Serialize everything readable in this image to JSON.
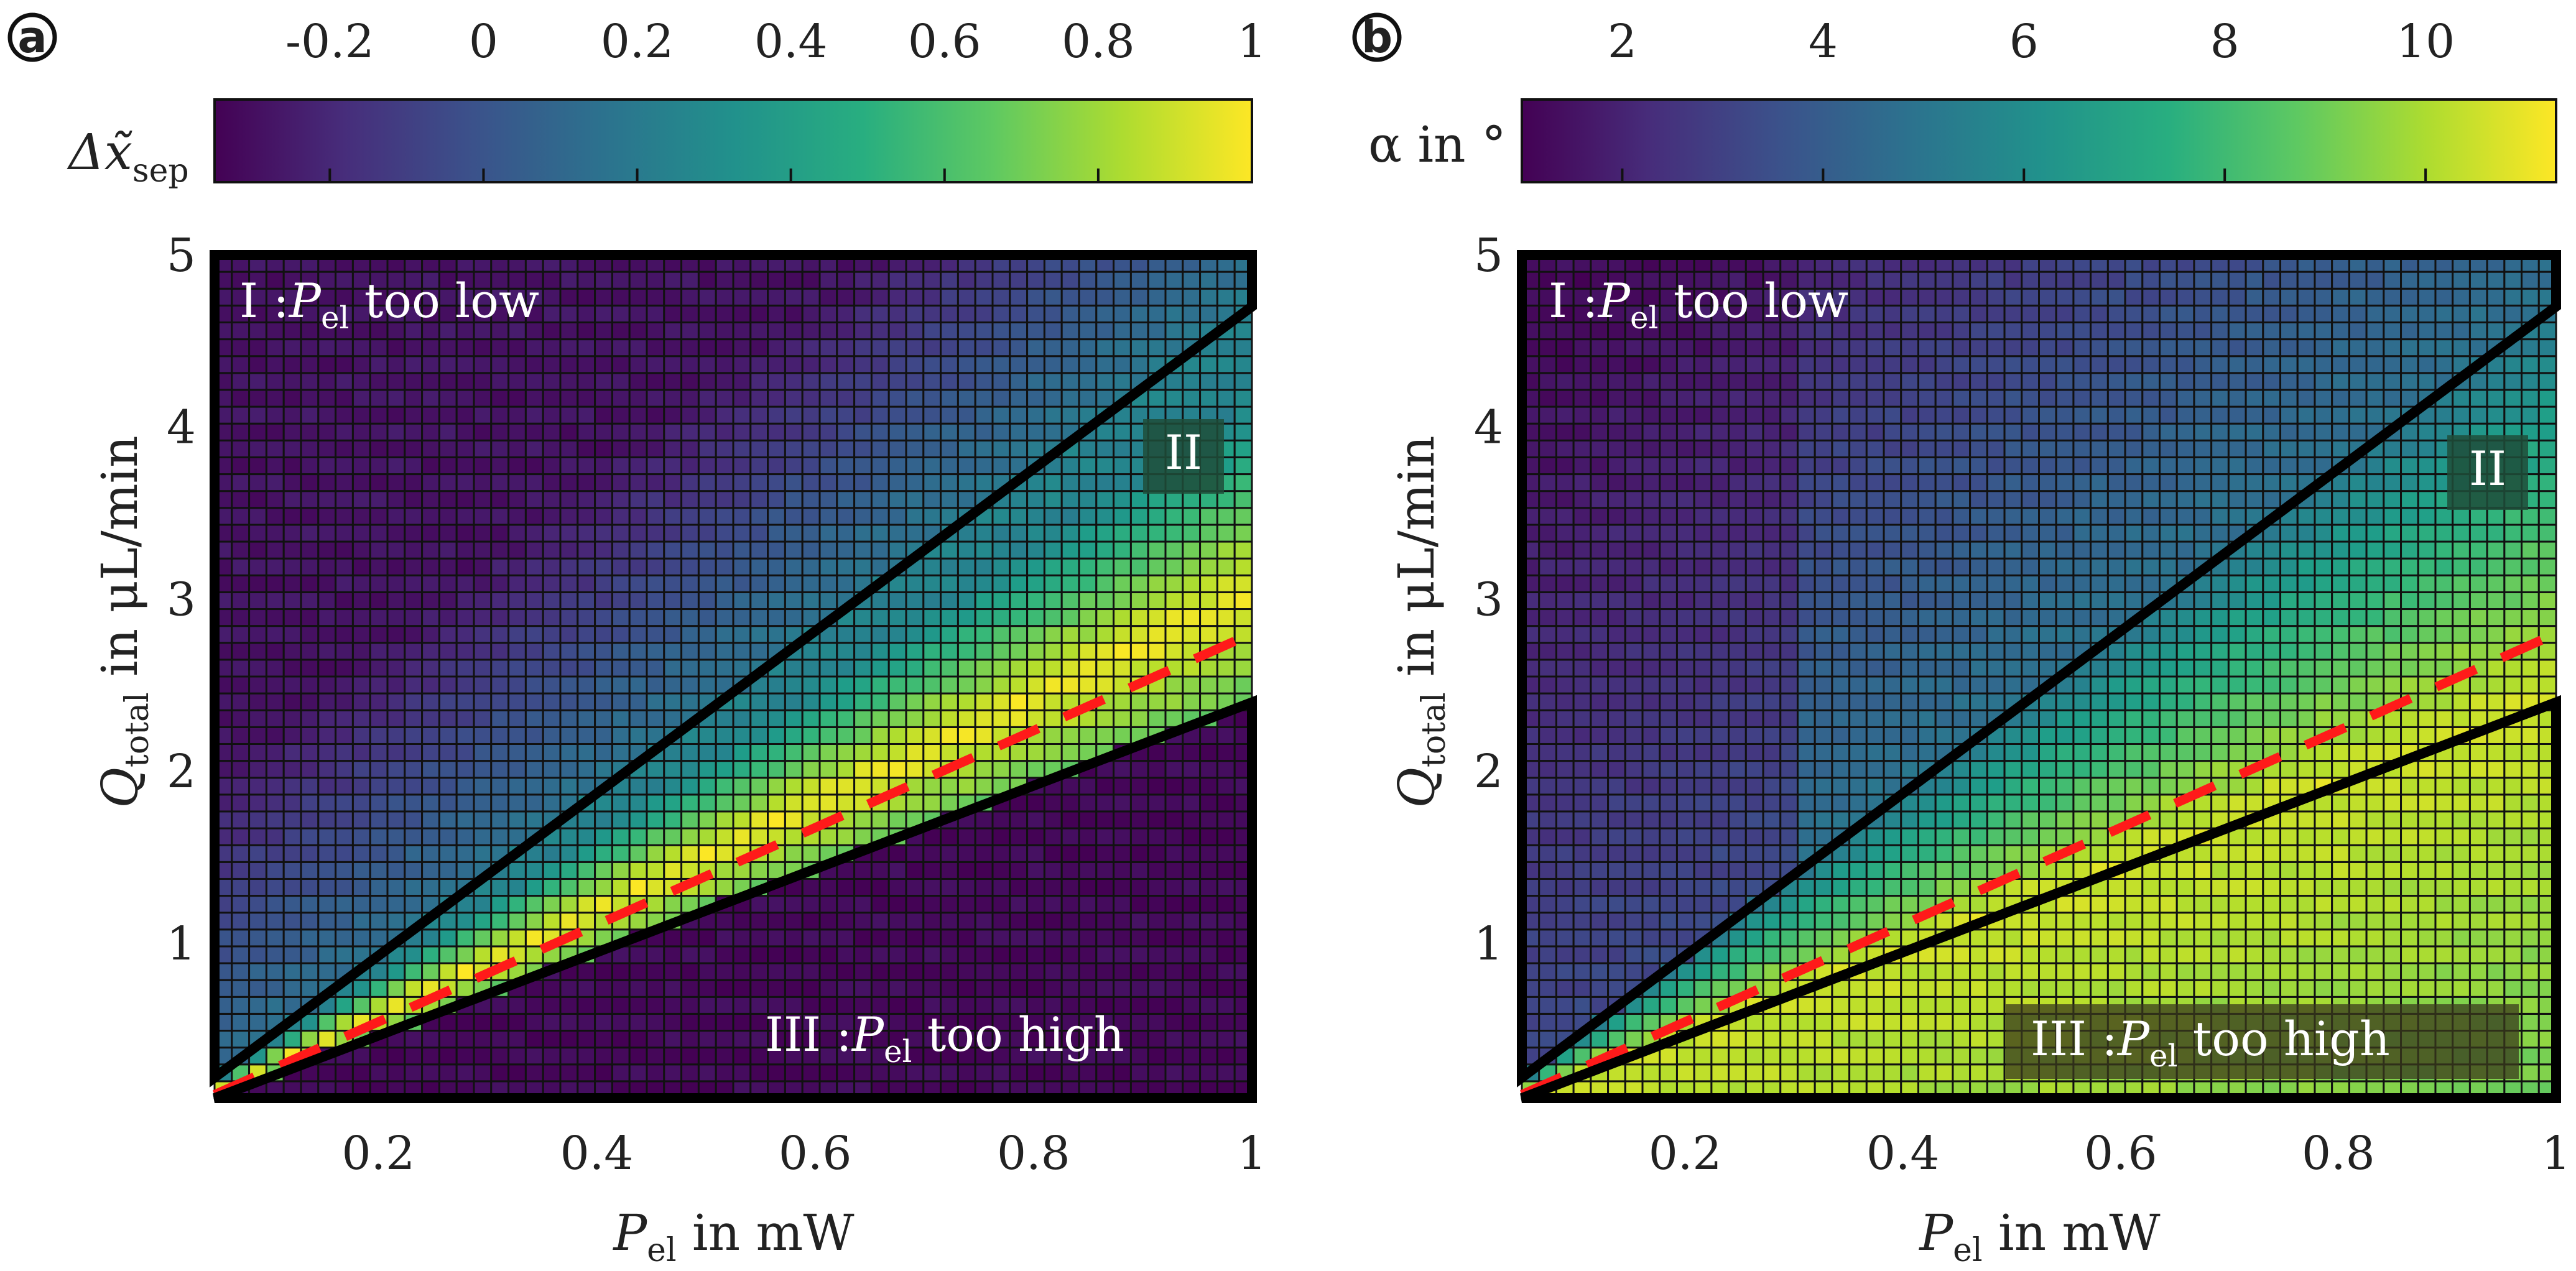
{
  "figure": {
    "panel_labels": [
      "a",
      "b"
    ]
  },
  "chart_data": [
    {
      "type": "heatmap",
      "panel": "a",
      "colorbar_label": "Δx̃",
      "colorbar_label_sub": "sep",
      "colorbar_ticks": [
        "-0.2",
        "0",
        "0.2",
        "0.4",
        "0.6",
        "0.8",
        "1"
      ],
      "colorbar_tick_values": [
        -0.2,
        0,
        0.2,
        0.4,
        0.6,
        0.8,
        1
      ],
      "crange": [
        -0.35,
        1
      ],
      "xlabel_sym": "P",
      "xlabel_sub": "el",
      "xlabel_rest": " in mW",
      "ylabel_sym": "Q",
      "ylabel_sub": "total",
      "ylabel_rest": " in μL/min",
      "xlim": [
        0.05,
        1
      ],
      "ylim": [
        0.1,
        5
      ],
      "xticks": [
        "0.2",
        "0.4",
        "0.6",
        "0.8",
        "1"
      ],
      "xtick_values": [
        0.2,
        0.4,
        0.6,
        0.8,
        1
      ],
      "yticks": [
        "1",
        "2",
        "3",
        "4",
        "5"
      ],
      "ytick_values": [
        1,
        2,
        3,
        4,
        5
      ],
      "grid_cells": [
        60,
        50
      ],
      "region_I_num": "I :",
      "region_I_sym": "P",
      "region_I_sub": "el",
      "region_I_rest": " too low",
      "region_II": "II",
      "region_III_num": "III :",
      "region_III_sym": "P",
      "region_III_sub": "el",
      "region_III_rest": " too high",
      "boundary_upper": [
        [
          0.05,
          0.22
        ],
        [
          1,
          4.7
        ]
      ],
      "boundary_lower": [
        [
          0.05,
          0.1
        ],
        [
          1,
          2.4
        ]
      ],
      "optimum_dashed": [
        [
          0.05,
          0.12
        ],
        [
          1,
          2.8
        ]
      ],
      "region_colors": {
        "low": "#3b5a8e",
        "mid": "#27a585",
        "opt": "#f0e424",
        "high": "#440154"
      }
    },
    {
      "type": "heatmap",
      "panel": "b",
      "colorbar_label": "α in °",
      "colorbar_ticks": [
        "2",
        "4",
        "6",
        "8",
        "10"
      ],
      "colorbar_tick_values": [
        2,
        4,
        6,
        8,
        10
      ],
      "crange": [
        1,
        11.3
      ],
      "xlabel_sym": "P",
      "xlabel_sub": "el",
      "xlabel_rest": " in mW",
      "ylabel_sym": "Q",
      "ylabel_sub": "total",
      "ylabel_rest": " in μL/min",
      "xlim": [
        0.05,
        1
      ],
      "ylim": [
        0.1,
        5
      ],
      "xticks": [
        "0.2",
        "0.4",
        "0.6",
        "0.8",
        "1"
      ],
      "xtick_values": [
        0.2,
        0.4,
        0.6,
        0.8,
        1
      ],
      "yticks": [
        "1",
        "2",
        "3",
        "4",
        "5"
      ],
      "ytick_values": [
        1,
        2,
        3,
        4,
        5
      ],
      "grid_cells": [
        60,
        50
      ],
      "region_I_num": "I :",
      "region_I_sym": "P",
      "region_I_sub": "el",
      "region_I_rest": " too low",
      "region_II": "II",
      "region_III_num": "III :",
      "region_III_sym": "P",
      "region_III_sub": "el",
      "region_III_rest": " too high",
      "boundary_upper": [
        [
          0.05,
          0.22
        ],
        [
          1,
          4.7
        ]
      ],
      "boundary_lower": [
        [
          0.05,
          0.1
        ],
        [
          1,
          2.4
        ]
      ],
      "optimum_dashed": [
        [
          0.05,
          0.12
        ],
        [
          1,
          2.8
        ]
      ]
    }
  ]
}
